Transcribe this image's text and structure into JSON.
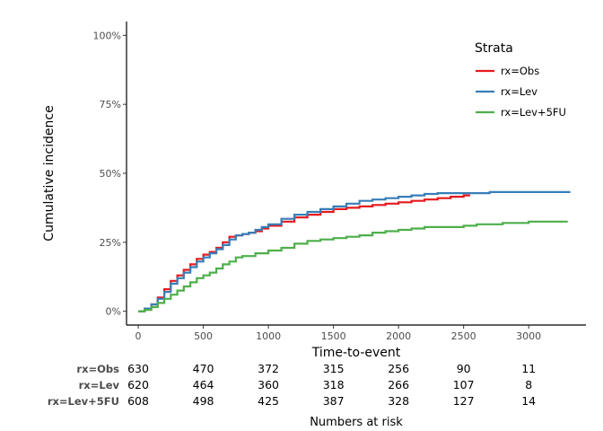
{
  "chart_data": {
    "type": "line",
    "step": true,
    "xlabel": "Time-to-event",
    "ylabel": "Cumulative incidence",
    "xlim": [
      -90,
      3440
    ],
    "ylim": [
      -0.05,
      1.05
    ],
    "x_ticks": [
      0,
      500,
      1000,
      1500,
      2000,
      2500,
      3000
    ],
    "y_ticks": [
      0,
      0.25,
      0.5,
      0.75,
      1.0
    ],
    "y_tick_labels": [
      "0%",
      "25%",
      "50%",
      "75%",
      "100%"
    ],
    "grid": false,
    "legend": {
      "title": "Strata",
      "position": "top-right"
    },
    "series": [
      {
        "name": "rx=Obs",
        "color": "#e41a1c",
        "x": [
          0,
          50,
          100,
          150,
          200,
          250,
          300,
          350,
          400,
          450,
          500,
          550,
          600,
          650,
          700,
          750,
          800,
          850,
          900,
          950,
          1000,
          1100,
          1200,
          1300,
          1400,
          1500,
          1600,
          1700,
          1800,
          1900,
          2000,
          2100,
          2200,
          2300,
          2400,
          2500,
          2550
        ],
        "values": [
          0,
          0.01,
          0.025,
          0.05,
          0.08,
          0.11,
          0.13,
          0.15,
          0.17,
          0.19,
          0.205,
          0.215,
          0.23,
          0.25,
          0.27,
          0.275,
          0.28,
          0.285,
          0.29,
          0.3,
          0.31,
          0.325,
          0.34,
          0.35,
          0.36,
          0.37,
          0.375,
          0.38,
          0.385,
          0.39,
          0.395,
          0.4,
          0.405,
          0.41,
          0.415,
          0.42,
          0.42
        ]
      },
      {
        "name": "rx=Lev",
        "color": "#377eb8",
        "x": [
          0,
          50,
          100,
          150,
          200,
          250,
          300,
          350,
          400,
          450,
          500,
          550,
          600,
          650,
          700,
          750,
          800,
          850,
          900,
          950,
          1000,
          1100,
          1200,
          1300,
          1400,
          1500,
          1600,
          1700,
          1800,
          1900,
          2000,
          2100,
          2200,
          2300,
          2400,
          2500,
          2600,
          2700,
          2800,
          3000,
          3200,
          3320
        ],
        "values": [
          0,
          0.01,
          0.025,
          0.045,
          0.07,
          0.1,
          0.12,
          0.14,
          0.16,
          0.18,
          0.195,
          0.21,
          0.225,
          0.24,
          0.26,
          0.275,
          0.28,
          0.285,
          0.295,
          0.305,
          0.315,
          0.335,
          0.35,
          0.36,
          0.37,
          0.38,
          0.39,
          0.4,
          0.405,
          0.41,
          0.415,
          0.42,
          0.425,
          0.428,
          0.428,
          0.428,
          0.428,
          0.432,
          0.432,
          0.432,
          0.432,
          0.432
        ]
      },
      {
        "name": "rx=Lev+5FU",
        "color": "#4daf4a",
        "x": [
          0,
          50,
          100,
          150,
          200,
          250,
          300,
          350,
          400,
          450,
          500,
          550,
          600,
          650,
          700,
          750,
          800,
          900,
          1000,
          1100,
          1200,
          1300,
          1400,
          1500,
          1600,
          1700,
          1800,
          1900,
          2000,
          2100,
          2200,
          2300,
          2400,
          2500,
          2600,
          2700,
          2800,
          3000,
          3200,
          3300
        ],
        "values": [
          0,
          0.005,
          0.015,
          0.03,
          0.045,
          0.06,
          0.075,
          0.09,
          0.105,
          0.12,
          0.13,
          0.14,
          0.155,
          0.17,
          0.18,
          0.195,
          0.2,
          0.21,
          0.22,
          0.23,
          0.245,
          0.255,
          0.26,
          0.265,
          0.27,
          0.275,
          0.285,
          0.29,
          0.295,
          0.3,
          0.305,
          0.305,
          0.305,
          0.31,
          0.315,
          0.315,
          0.32,
          0.325,
          0.325,
          0.325
        ]
      }
    ],
    "risk_table": {
      "title": "Numbers at risk",
      "times": [
        0,
        500,
        1000,
        1500,
        2000,
        2500,
        3000
      ],
      "rows": [
        {
          "strata": "rx=Obs",
          "values": [
            "630",
            "470",
            "372",
            "315",
            "256",
            "90",
            "11"
          ]
        },
        {
          "strata": "rx=Lev",
          "values": [
            "620",
            "464",
            "360",
            "318",
            "266",
            "107",
            "8"
          ]
        },
        {
          "strata": "rx=Lev+5FU",
          "values": [
            "608",
            "498",
            "425",
            "387",
            "328",
            "127",
            "14"
          ]
        }
      ]
    }
  }
}
